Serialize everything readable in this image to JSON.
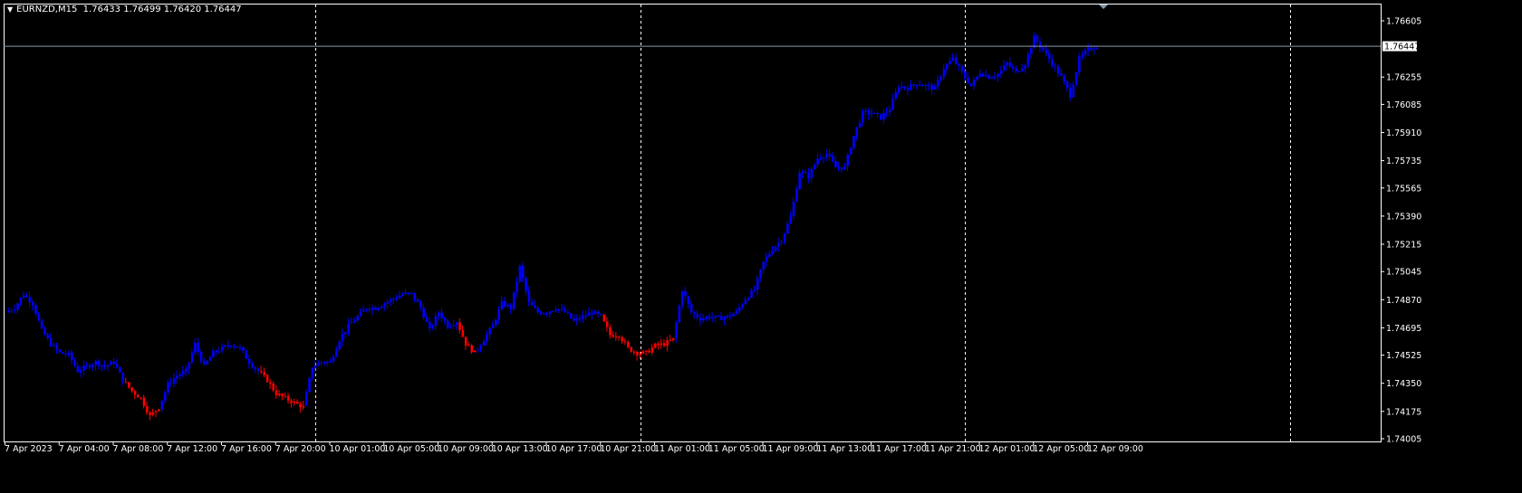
{
  "window": {
    "symbol_timeframe": "EURNZD,M15",
    "ohlc": "1.76433 1.76499 1.76420 1.76447"
  },
  "colors": {
    "background": "#000000",
    "axis": "#ffffff",
    "bull_segment": "#0000ff",
    "bear_segment": "#ff0000",
    "bid_line": "#8a9aa8",
    "separator": "#ffffff"
  },
  "icons": {
    "menu": "triangle-down-icon"
  },
  "chart_data": {
    "type": "candlestick",
    "symbol": "EURNZD",
    "timeframe": "M15",
    "y_axis_ticks": [
      "1.76605",
      "1.76255",
      "1.76085",
      "1.75910",
      "1.75735",
      "1.75565",
      "1.75390",
      "1.75215",
      "1.75045",
      "1.74870",
      "1.74695",
      "1.74525",
      "1.74350",
      "1.74175",
      "1.74005"
    ],
    "ylim": [
      1.74005,
      1.76605
    ],
    "x_axis_ticks": [
      "7 Apr 2023",
      "7 Apr 04:00",
      "7 Apr 08:00",
      "7 Apr 12:00",
      "7 Apr 16:00",
      "7 Apr 20:00",
      "10 Apr 01:00",
      "10 Apr 05:00",
      "10 Apr 09:00",
      "10 Apr 13:00",
      "10 Apr 17:00",
      "10 Apr 21:00",
      "11 Apr 01:00",
      "11 Apr 05:00",
      "11 Apr 09:00",
      "11 Apr 13:00",
      "11 Apr 17:00",
      "11 Apr 21:00",
      "12 Apr 01:00",
      "12 Apr 05:00",
      "12 Apr 09:00"
    ],
    "current_bid": "1.76447",
    "grid": false,
    "period_separators": true,
    "close_path": [
      [
        1.74792,
        "b"
      ],
      [
        1.7482,
        "b"
      ],
      [
        1.74905,
        "b"
      ],
      [
        1.74848,
        "b"
      ],
      [
        1.7468,
        "b"
      ],
      [
        1.74595,
        "b"
      ],
      [
        1.74539,
        "b"
      ],
      [
        1.74528,
        "b"
      ],
      [
        1.74426,
        "b"
      ],
      [
        1.74454,
        "b"
      ],
      [
        1.74482,
        "b"
      ],
      [
        1.74454,
        "b"
      ],
      [
        1.74482,
        "b"
      ],
      [
        1.7437,
        "b"
      ],
      [
        1.74302,
        "s"
      ],
      [
        1.74257,
        "s"
      ],
      [
        1.74145,
        "s"
      ],
      [
        1.74201,
        "s"
      ],
      [
        1.74342,
        "b"
      ],
      [
        1.74398,
        "b"
      ],
      [
        1.74426,
        "b"
      ],
      [
        1.74595,
        "b"
      ],
      [
        1.74454,
        "b"
      ],
      [
        1.74539,
        "b"
      ],
      [
        1.74567,
        "b"
      ],
      [
        1.74595,
        "b"
      ],
      [
        1.74567,
        "b"
      ],
      [
        1.74482,
        "b"
      ],
      [
        1.74426,
        "b"
      ],
      [
        1.7437,
        "s"
      ],
      [
        1.74285,
        "s"
      ],
      [
        1.74257,
        "s"
      ],
      [
        1.74229,
        "s"
      ],
      [
        1.74201,
        "s"
      ],
      [
        1.74454,
        "b"
      ],
      [
        1.74482,
        "b"
      ],
      [
        1.74482,
        "b"
      ],
      [
        1.74623,
        "b"
      ],
      [
        1.74708,
        "b"
      ],
      [
        1.74764,
        "b"
      ],
      [
        1.7482,
        "b"
      ],
      [
        1.7482,
        "b"
      ],
      [
        1.74848,
        "b"
      ],
      [
        1.74877,
        "b"
      ],
      [
        1.74905,
        "b"
      ],
      [
        1.74905,
        "b"
      ],
      [
        1.7482,
        "b"
      ],
      [
        1.7468,
        "b"
      ],
      [
        1.74792,
        "b"
      ],
      [
        1.74708,
        "b"
      ],
      [
        1.74736,
        "b"
      ],
      [
        1.74595,
        "s"
      ],
      [
        1.74539,
        "s"
      ],
      [
        1.74623,
        "b"
      ],
      [
        1.74708,
        "b"
      ],
      [
        1.74848,
        "b"
      ],
      [
        1.7482,
        "b"
      ],
      [
        1.75074,
        "b"
      ],
      [
        1.74848,
        "b"
      ],
      [
        1.74792,
        "b"
      ],
      [
        1.74792,
        "b"
      ],
      [
        1.7482,
        "b"
      ],
      [
        1.74792,
        "b"
      ],
      [
        1.74736,
        "b"
      ],
      [
        1.74764,
        "b"
      ],
      [
        1.74792,
        "b"
      ],
      [
        1.74764,
        "b"
      ],
      [
        1.74651,
        "s"
      ],
      [
        1.74651,
        "s"
      ],
      [
        1.74567,
        "s"
      ],
      [
        1.74539,
        "s"
      ],
      [
        1.74539,
        "s"
      ],
      [
        1.74584,
        "s"
      ],
      [
        1.74595,
        "s"
      ],
      [
        1.74623,
        "s"
      ],
      [
        1.74933,
        "b"
      ],
      [
        1.74792,
        "b"
      ],
      [
        1.74753,
        "b"
      ],
      [
        1.74764,
        "b"
      ],
      [
        1.74753,
        "b"
      ],
      [
        1.74764,
        "b"
      ],
      [
        1.74792,
        "b"
      ],
      [
        1.74877,
        "b"
      ],
      [
        1.74933,
        "b"
      ],
      [
        1.75102,
        "b"
      ],
      [
        1.75186,
        "b"
      ],
      [
        1.75243,
        "b"
      ],
      [
        1.75383,
        "b"
      ],
      [
        1.75665,
        "b"
      ],
      [
        1.75637,
        "b"
      ],
      [
        1.75749,
        "b"
      ],
      [
        1.75777,
        "b"
      ],
      [
        1.75693,
        "b"
      ],
      [
        1.75693,
        "b"
      ],
      [
        1.7589,
        "b"
      ],
      [
        1.76031,
        "b"
      ],
      [
        1.76031,
        "b"
      ],
      [
        1.76003,
        "b"
      ],
      [
        1.76059,
        "b"
      ],
      [
        1.762,
        "b"
      ],
      [
        1.76188,
        "b"
      ],
      [
        1.76217,
        "b"
      ],
      [
        1.762,
        "b"
      ],
      [
        1.76183,
        "b"
      ],
      [
        1.76312,
        "b"
      ],
      [
        1.76369,
        "b"
      ],
      [
        1.76284,
        "b"
      ],
      [
        1.762,
        "b"
      ],
      [
        1.76284,
        "b"
      ],
      [
        1.76256,
        "b"
      ],
      [
        1.76273,
        "b"
      ],
      [
        1.7634,
        "b"
      ],
      [
        1.76284,
        "b"
      ],
      [
        1.7634,
        "b"
      ],
      [
        1.76498,
        "b"
      ],
      [
        1.76425,
        "b"
      ],
      [
        1.7634,
        "b"
      ],
      [
        1.76256,
        "b"
      ],
      [
        1.76143,
        "b"
      ],
      [
        1.76369,
        "b"
      ],
      [
        1.76425,
        "b"
      ],
      [
        1.76447,
        "b"
      ]
    ]
  }
}
